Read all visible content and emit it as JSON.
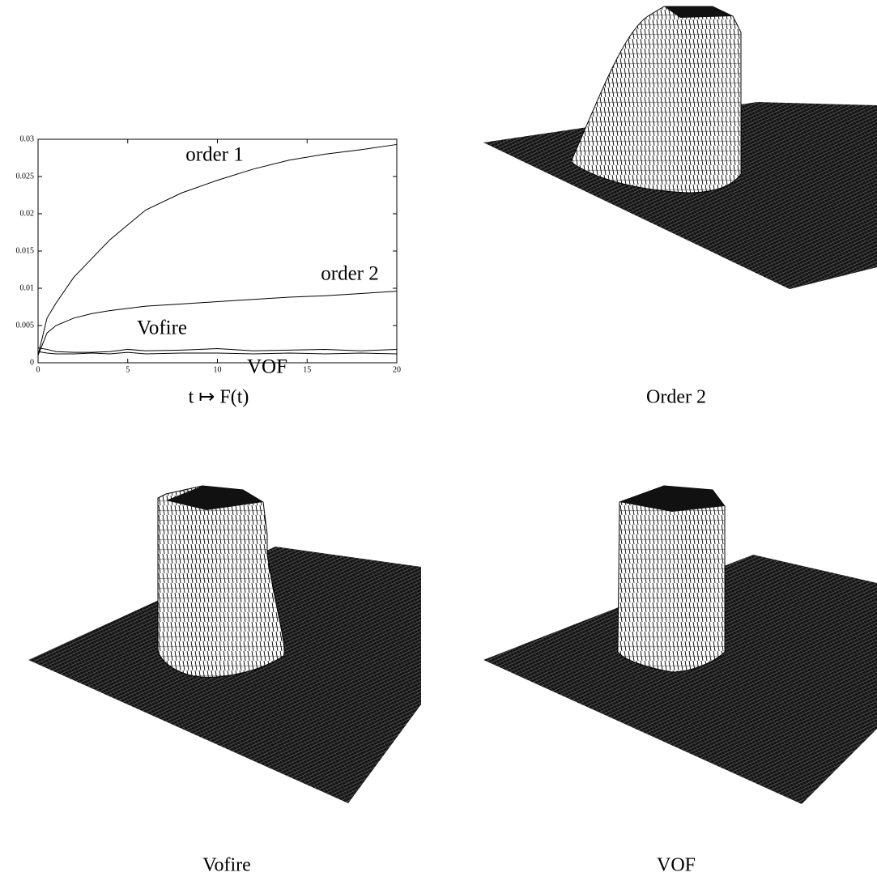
{
  "chart_data": {
    "type": "line",
    "xlabel": "t ↦ F(t)",
    "x": [
      0,
      0.5,
      1,
      2,
      3,
      4,
      5,
      6,
      8,
      10,
      12,
      14,
      16,
      18,
      20
    ],
    "series": [
      {
        "name": "order 1",
        "color": "#000000",
        "values": [
          0.001,
          0.006,
          0.008,
          0.0115,
          0.014,
          0.0165,
          0.0185,
          0.0205,
          0.0228,
          0.0245,
          0.026,
          0.0272,
          0.028,
          0.0286,
          0.0293
        ]
      },
      {
        "name": "order 2",
        "color": "#000000",
        "values": [
          0.001,
          0.004,
          0.005,
          0.006,
          0.0066,
          0.007,
          0.0073,
          0.0076,
          0.0079,
          0.0082,
          0.0085,
          0.0088,
          0.009,
          0.0093,
          0.0096
        ]
      },
      {
        "name": "Vofire",
        "color": "#000000",
        "values": [
          0.002,
          0.0018,
          0.0015,
          0.0014,
          0.0014,
          0.0015,
          0.0018,
          0.0016,
          0.0017,
          0.0019,
          0.0016,
          0.0017,
          0.0018,
          0.0016,
          0.0018
        ]
      },
      {
        "name": "VOF",
        "color": "#000000",
        "values": [
          0.0015,
          0.0013,
          0.0012,
          0.0012,
          0.0013,
          0.0012,
          0.0014,
          0.0012,
          0.0013,
          0.0013,
          0.0012,
          0.0013,
          0.0012,
          0.0013,
          0.0012
        ]
      }
    ],
    "xlim": [
      0,
      20
    ],
    "xticks": [
      0,
      5,
      10,
      15,
      20
    ],
    "ylim": [
      0,
      0.03
    ],
    "yticks": [
      0,
      0.005,
      0.01,
      0.015,
      0.02,
      0.025,
      0.03
    ]
  },
  "panels": [
    {
      "caption": "Order 2"
    },
    {
      "caption": "Vofire"
    },
    {
      "caption": "VOF"
    }
  ]
}
